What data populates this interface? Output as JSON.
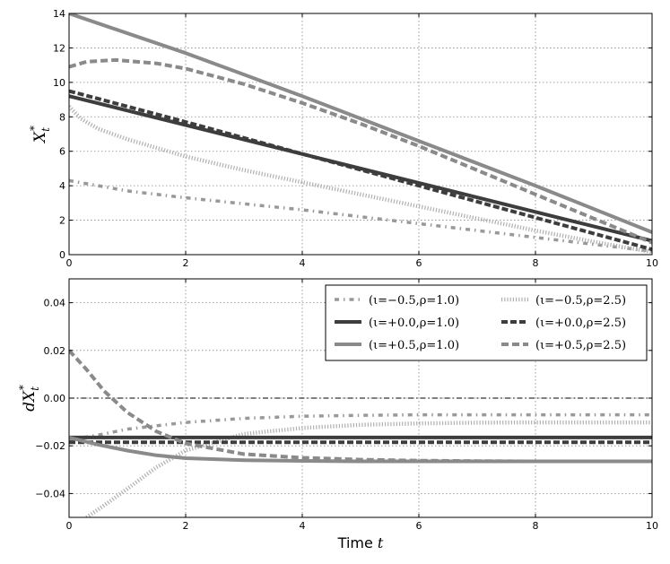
{
  "chart_data": [
    {
      "type": "line",
      "ylabel_main": "X",
      "ylabel_sub": "t",
      "ylabel_sup": "*",
      "xlim": [
        0,
        10
      ],
      "ylim": [
        0,
        14
      ],
      "xticks": [
        0,
        2,
        4,
        6,
        8,
        10
      ],
      "yticks": [
        0,
        2,
        4,
        6,
        8,
        10,
        12,
        14
      ],
      "grid": true,
      "series": [
        {
          "key": "s1",
          "x": [
            0,
            0.5,
            1,
            2,
            3,
            4,
            5,
            6,
            7,
            8,
            9,
            10
          ],
          "y": [
            4.3,
            4.0,
            3.7,
            3.3,
            2.95,
            2.6,
            2.2,
            1.8,
            1.4,
            1.0,
            0.6,
            0.2
          ]
        },
        {
          "key": "s2",
          "x": [
            0,
            0.2,
            0.5,
            1,
            1.5,
            2,
            3,
            4,
            5,
            6,
            7,
            8,
            9,
            10
          ],
          "y": [
            8.6,
            7.9,
            7.3,
            6.7,
            6.2,
            5.7,
            4.9,
            4.2,
            3.5,
            2.8,
            2.1,
            1.4,
            0.75,
            0.15
          ]
        },
        {
          "key": "s3",
          "x": [
            0,
            10
          ],
          "y": [
            9.2,
            0.8
          ]
        },
        {
          "key": "s4",
          "x": [
            0,
            2,
            4,
            6,
            8,
            10
          ],
          "y": [
            9.5,
            7.7,
            5.85,
            4.0,
            2.15,
            0.3
          ]
        },
        {
          "key": "s5",
          "x": [
            0,
            2,
            4,
            6,
            8,
            10
          ],
          "y": [
            14.0,
            11.7,
            9.2,
            6.6,
            4.0,
            1.3
          ]
        },
        {
          "key": "s6",
          "x": [
            0,
            0.3,
            0.8,
            1.5,
            2,
            3,
            4,
            5,
            6,
            7,
            8,
            9,
            10
          ],
          "y": [
            10.9,
            11.2,
            11.3,
            11.1,
            10.8,
            9.9,
            8.8,
            7.6,
            6.3,
            4.9,
            3.5,
            2.1,
            0.7
          ]
        }
      ]
    },
    {
      "type": "line",
      "ylabel_main": "dX",
      "ylabel_sub": "t",
      "ylabel_sup": "*",
      "xlabel_text": "Time",
      "xlabel_var": "t",
      "xlim": [
        0,
        10
      ],
      "ylim": [
        -0.05,
        0.05
      ],
      "xticks": [
        0,
        2,
        4,
        6,
        8,
        10
      ],
      "yticks": [
        -0.04,
        -0.02,
        0.0,
        0.02,
        0.04
      ],
      "ytick_labels": [
        "−0.04",
        "−0.02",
        "0.00",
        "0.02",
        "0.04"
      ],
      "reference_line": 0.0,
      "grid": true,
      "legend_position": "top-right",
      "series": [
        {
          "key": "s1",
          "x": [
            0,
            0.5,
            1,
            2,
            3,
            4,
            5,
            6,
            7,
            8,
            9,
            10
          ],
          "y": [
            -0.0175,
            -0.0155,
            -0.013,
            -0.0102,
            -0.0085,
            -0.0076,
            -0.0072,
            -0.007,
            -0.007,
            -0.007,
            -0.007,
            -0.007
          ]
        },
        {
          "key": "s2",
          "x": [
            0.3,
            0.6,
            1,
            1.5,
            2,
            3,
            4,
            5,
            6,
            7,
            8,
            9,
            10
          ],
          "y": [
            -0.05,
            -0.045,
            -0.038,
            -0.029,
            -0.022,
            -0.015,
            -0.0125,
            -0.0112,
            -0.0106,
            -0.0103,
            -0.0102,
            -0.0102,
            -0.0102
          ]
        },
        {
          "key": "s3",
          "x": [
            0,
            10
          ],
          "y": [
            -0.0165,
            -0.0165
          ]
        },
        {
          "key": "s4",
          "x": [
            0,
            10
          ],
          "y": [
            -0.0185,
            -0.0185
          ]
        },
        {
          "key": "s5",
          "x": [
            0,
            0.5,
            1,
            1.5,
            2,
            3,
            4,
            5,
            6,
            7,
            8,
            10
          ],
          "y": [
            -0.0165,
            -0.0195,
            -0.022,
            -0.024,
            -0.0252,
            -0.026,
            -0.0263,
            -0.0265,
            -0.0265,
            -0.0265,
            -0.0265,
            -0.0265
          ]
        },
        {
          "key": "s6",
          "x": [
            0,
            0.3,
            0.6,
            1,
            1.5,
            2,
            3,
            4,
            5,
            6,
            7,
            8,
            10
          ],
          "y": [
            0.02,
            0.012,
            0.003,
            -0.006,
            -0.014,
            -0.019,
            -0.0235,
            -0.025,
            -0.0258,
            -0.0262,
            -0.0264,
            -0.0265,
            -0.0265
          ]
        }
      ]
    }
  ],
  "legend": [
    {
      "key": "s1",
      "label": "(ι=−0.5,ρ=1.0)"
    },
    {
      "key": "s2",
      "label": "(ι=−0.5,ρ=2.5)"
    },
    {
      "key": "s3",
      "label": "(ι=+0.0,ρ=1.0)"
    },
    {
      "key": "s4",
      "label": "(ι=+0.0,ρ=2.5)"
    },
    {
      "key": "s5",
      "label": "(ι=+0.5,ρ=1.0)"
    },
    {
      "key": "s6",
      "label": "(ι=+0.5,ρ=2.5)"
    }
  ],
  "styles": {
    "s1": {
      "color": "#999999",
      "dash": "5 5 1.5 5",
      "width": 3.5
    },
    "s2": {
      "color": "#b0b0b0",
      "dash": "1.2 2",
      "width": 4.5
    },
    "s3": {
      "color": "#3d3d3d",
      "dash": "",
      "width": 4
    },
    "s4": {
      "color": "#3d3d3d",
      "dash": "7 3",
      "width": 4
    },
    "s5": {
      "color": "#8a8a8a",
      "dash": "",
      "width": 4
    },
    "s6": {
      "color": "#8a8a8a",
      "dash": "8 4",
      "width": 4
    }
  }
}
